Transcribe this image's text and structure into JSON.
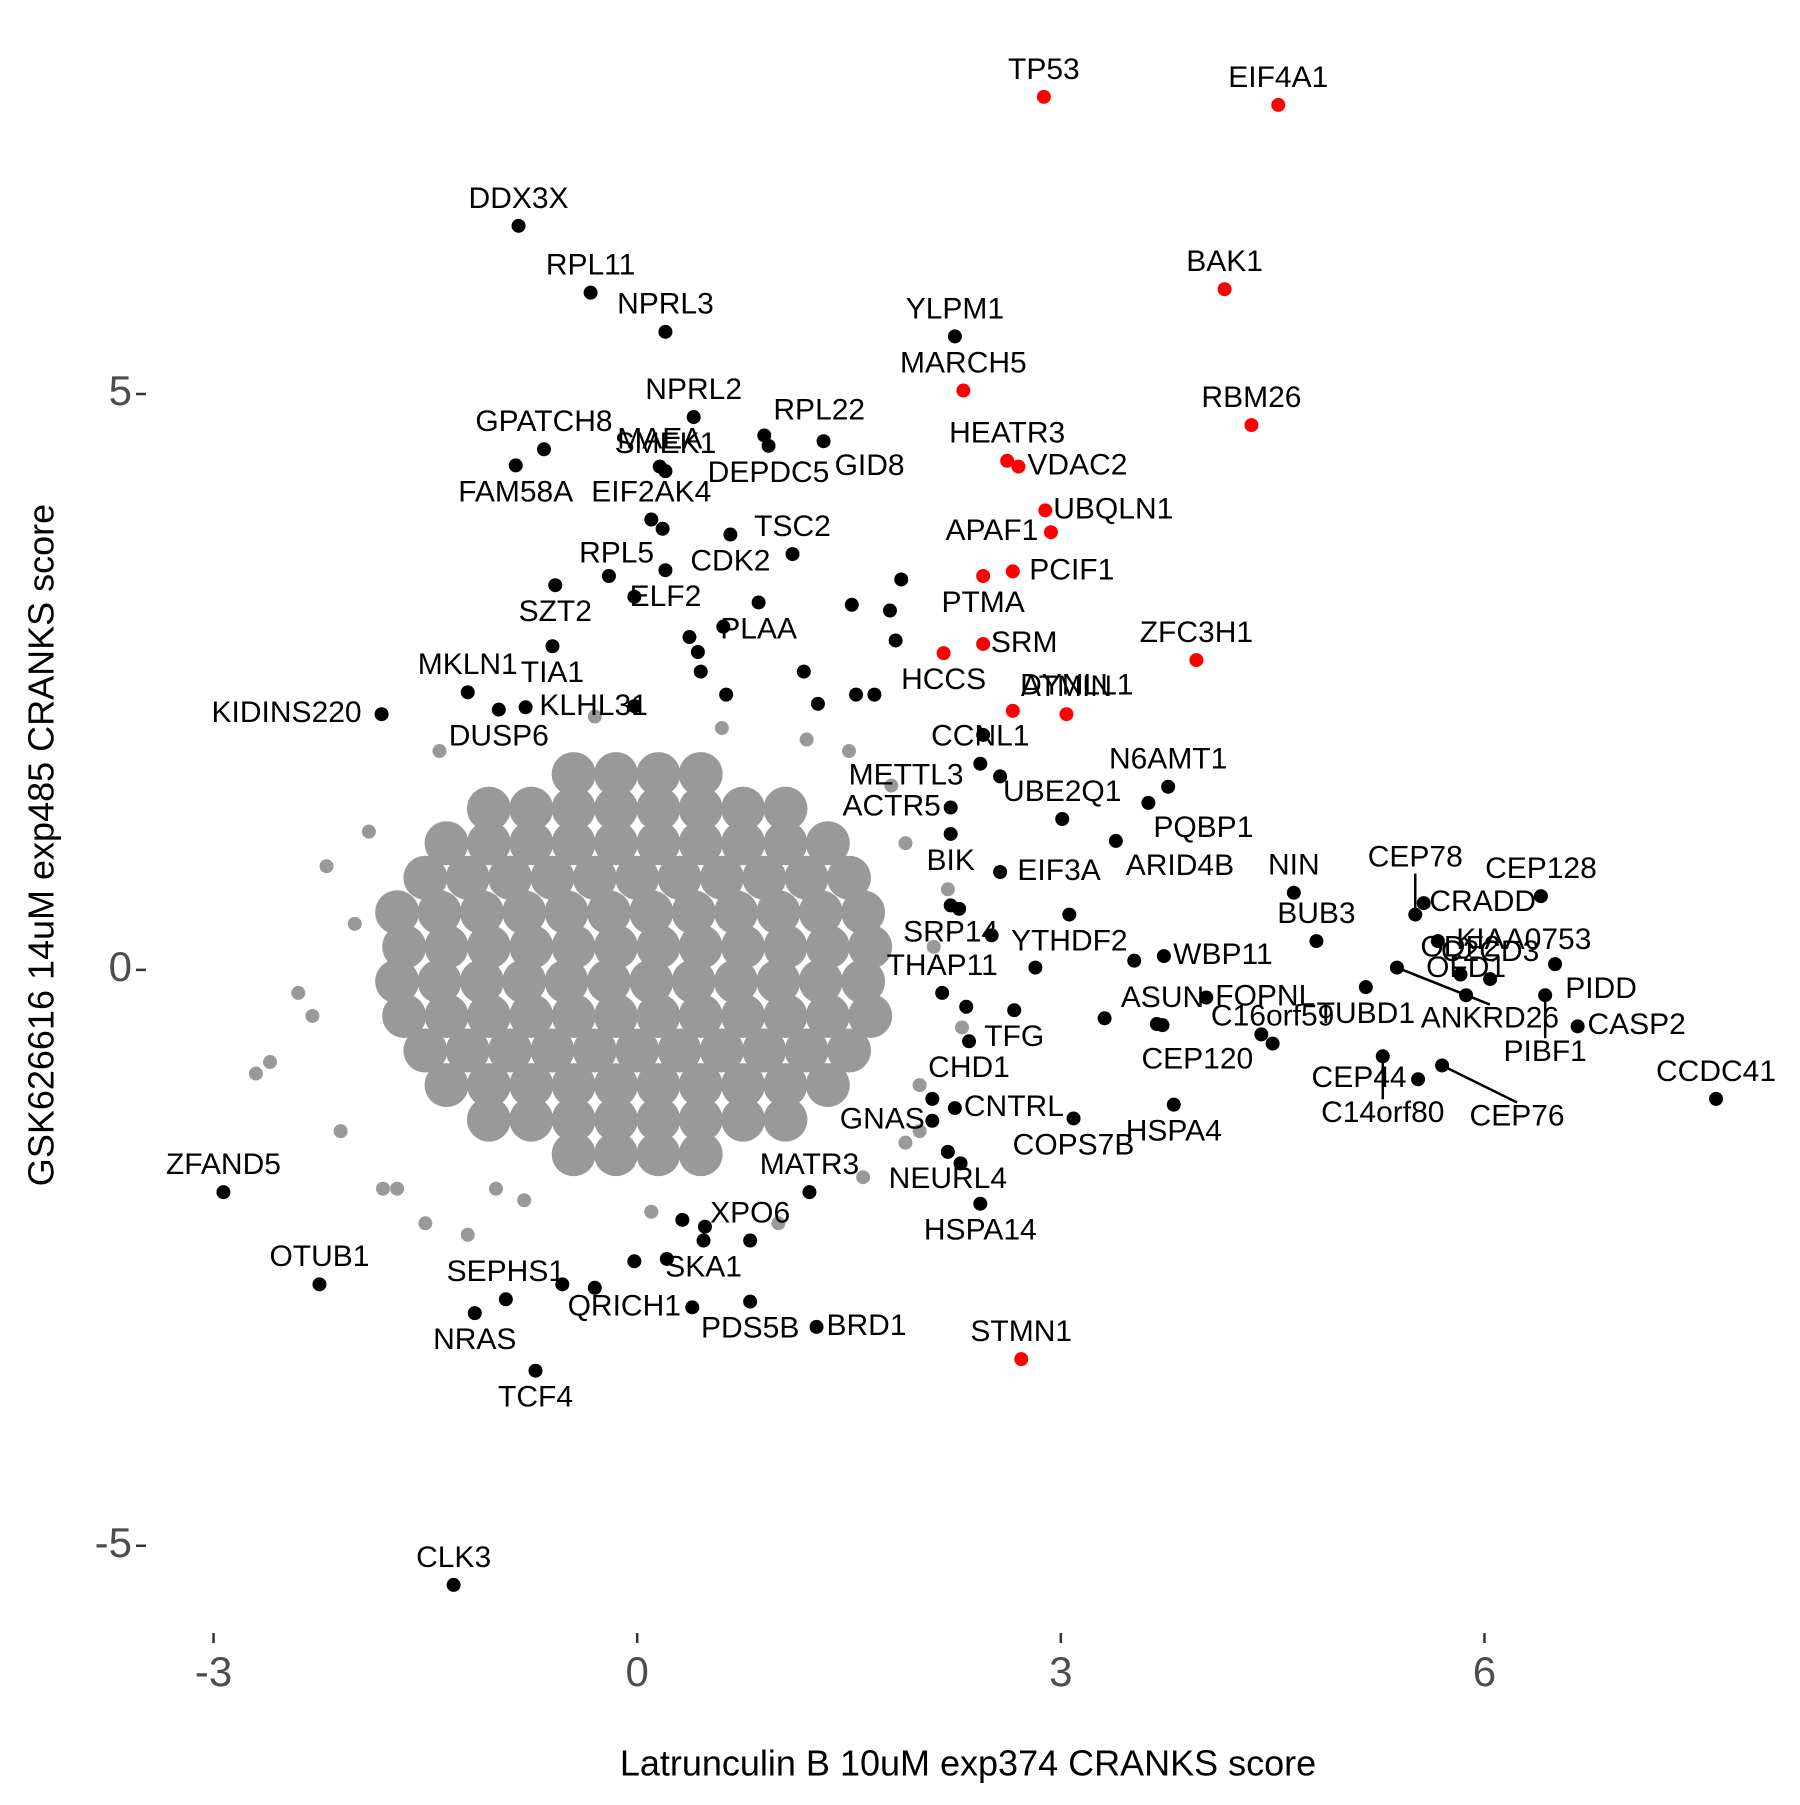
{
  "chart_data": {
    "type": "scatter",
    "x_label": "Latrunculin B 10uM exp374 CRANKS score",
    "y_label": "GSK626616 14uM exp485 CRANKS score",
    "xlim": [
      -3.45,
      8.1
    ],
    "ylim": [
      -5.74,
      7.9
    ],
    "xticks": [
      -3,
      0,
      3,
      6
    ],
    "yticks": [
      -5,
      0,
      5
    ],
    "grid": false,
    "series": [
      {
        "color": "#999999",
        "x": [
          -0.45,
          -0.15,
          0.15,
          0.45,
          -1.05,
          -0.75,
          -0.45,
          -0.15,
          0.15,
          0.45,
          0.75,
          1.05,
          -1.35,
          -1.05,
          -0.75,
          -0.45,
          -0.15,
          0.15,
          0.45,
          0.75,
          1.05,
          1.35,
          -1.5,
          -1.2,
          -0.9,
          -0.6,
          -0.3,
          0,
          0.3,
          0.6,
          0.9,
          1.2,
          1.5,
          -1.65,
          -1.35,
          -1.05,
          -0.75,
          -0.45,
          -0.15,
          0.15,
          0.45,
          0.75,
          1.05,
          1.35,
          1.65,
          -1.7,
          -1.4,
          -1.1,
          -0.8,
          -0.5,
          -0.2,
          0.1,
          0.4,
          0.7,
          1.0,
          1.3,
          1.6,
          -1.65,
          -1.35,
          -1.05,
          -0.75,
          -0.45,
          -0.15,
          0.15,
          0.45,
          0.75,
          1.05,
          1.35,
          1.65,
          -1.7,
          -1.4,
          -1.1,
          -0.8,
          -0.5,
          -0.2,
          0.1,
          0.4,
          0.7,
          1.0,
          1.3,
          1.6,
          -1.5,
          -1.2,
          -0.9,
          -0.6,
          -0.3,
          0,
          0.3,
          0.6,
          0.9,
          1.2,
          1.5,
          -1.35,
          -1.05,
          -0.75,
          -0.45,
          -0.15,
          0.15,
          0.45,
          0.75,
          1.05,
          1.35,
          -1.05,
          -0.75,
          -0.45,
          -0.15,
          0.15,
          0.45,
          0.75,
          1.05,
          -0.45,
          -0.15,
          0.15,
          0.45
        ],
        "y": [
          -1.6,
          -1.6,
          -1.6,
          -1.6,
          -1.3,
          -1.3,
          -1.3,
          -1.3,
          -1.3,
          -1.3,
          -1.3,
          -1.3,
          -1.0,
          -1.0,
          -1.0,
          -1.0,
          -1.0,
          -1.0,
          -1.0,
          -1.0,
          -1.0,
          -1.0,
          -0.7,
          -0.7,
          -0.7,
          -0.7,
          -0.7,
          -0.7,
          -0.7,
          -0.7,
          -0.7,
          -0.7,
          -0.7,
          -0.4,
          -0.4,
          -0.4,
          -0.4,
          -0.4,
          -0.4,
          -0.4,
          -0.4,
          -0.4,
          -0.4,
          -0.4,
          -0.4,
          -0.1,
          -0.1,
          -0.1,
          -0.1,
          -0.1,
          -0.1,
          -0.1,
          -0.1,
          -0.1,
          -0.1,
          -0.1,
          -0.1,
          0.2,
          0.2,
          0.2,
          0.2,
          0.2,
          0.2,
          0.2,
          0.2,
          0.2,
          0.2,
          0.2,
          0.2,
          0.5,
          0.5,
          0.5,
          0.5,
          0.5,
          0.5,
          0.5,
          0.5,
          0.5,
          0.5,
          0.5,
          0.5,
          0.8,
          0.8,
          0.8,
          0.8,
          0.8,
          0.8,
          0.8,
          0.8,
          0.8,
          0.8,
          0.8,
          1.1,
          1.1,
          1.1,
          1.1,
          1.1,
          1.1,
          1.1,
          1.1,
          1.1,
          1.1,
          1.4,
          1.4,
          1.4,
          1.4,
          1.4,
          1.4,
          1.4,
          1.4,
          1.7,
          1.7,
          1.7,
          1.7
        ]
      },
      {
        "color": "#999999",
        "x": [
          -2.3,
          -2.6,
          -2.7,
          -2.2,
          -1.9,
          -2.1,
          -1.8,
          -1.5,
          -1.2,
          -1.7,
          2.3,
          2.0,
          2.1,
          1.9,
          1.8,
          1.5,
          -1.4,
          -0.3,
          0.6,
          1.2,
          2.0,
          1.6,
          1.0,
          0.1,
          -0.8,
          -2.0,
          -2.4,
          2.2,
          -1.0,
          1.9
        ],
        "y": [
          -0.4,
          -0.8,
          -0.9,
          0.9,
          1.2,
          -1.4,
          -1.9,
          -2.2,
          -2.3,
          -1.9,
          -0.5,
          -1.0,
          0.2,
          1.1,
          1.6,
          1.9,
          1.9,
          2.2,
          2.1,
          2.0,
          -1.4,
          -1.8,
          -2.2,
          -2.1,
          -2.0,
          0.4,
          -0.2,
          0.7,
          -1.9,
          -1.5
        ]
      },
      {
        "color": "#000000",
        "x": [
          -0.2,
          -0.02,
          0.37,
          0.61,
          0.43,
          0.45,
          0.63,
          -0.02,
          1.52,
          1.79,
          1.83,
          1.55,
          1.68,
          1.28,
          1.18,
          1.87,
          2.45,
          2.28,
          2.51,
          2.82,
          3.52,
          3.31,
          3.68,
          2.33,
          2.09,
          2.29,
          -0.02,
          -0.3,
          -0.53,
          0.21,
          0.48,
          0.32
        ],
        "y": [
          3.42,
          3.24,
          2.89,
          2.98,
          2.76,
          2.59,
          2.39,
          2.29,
          3.17,
          3.12,
          2.86,
          2.39,
          2.39,
          2.31,
          2.59,
          3.39,
          2.04,
          0.53,
          0.3,
          0.02,
          0.08,
          -0.42,
          -0.47,
          -0.32,
          -1.12,
          -1.68,
          -2.53,
          -2.76,
          -2.73,
          -2.51,
          -2.23,
          -2.17
        ]
      },
      {
        "color": "#000000",
        "labels": [
          "DDX3X",
          "RPL11",
          "NPRL3",
          "NPRL2",
          "RPL22",
          "DEPDC5",
          "YLPM1",
          "EIF2AK4",
          "MAEA",
          "SMEK1",
          "GPATCH8",
          "FAM58A",
          "GID8",
          "RPL5",
          "CDK2",
          "TSC2",
          "SZT2",
          "ELF2",
          "PLAA",
          "TIA1",
          "MKLN1",
          "DUSP6",
          "KIDINS220",
          "KLHL31",
          "CCNL1",
          "UBE2Q1",
          "N6AMT1",
          "METTL3",
          "PQBP1",
          "ACTR5",
          "BIK",
          "EIF3A",
          "ARID4B",
          "YTHDF2",
          "SRP14",
          "NIN",
          "BUB3",
          "WBP11",
          "TUBD1",
          "FOPNL",
          "CEP120",
          "CEP78",
          "ANKRD26",
          "CRADD",
          "KIAA0753",
          "CEP128",
          "PIDD",
          "PIBF1",
          "ODF2",
          "C2CD3",
          "CASP2",
          "CCDC41",
          "OFD1",
          "C14orf80",
          "CEP76",
          "CEP44",
          "ASUN",
          "C16orf59",
          "HSPA4",
          "THAP11",
          "TFG",
          "CHD1",
          "GNAS",
          "CNTRL",
          "COPS7B",
          "NEURL4",
          "HSPA14",
          "MATR3",
          "XPO6",
          "SKA1",
          "SEPHS1",
          "PDS5B",
          "QRICH1",
          "BRD1",
          "NRAS",
          "TCF4",
          "ZFAND5",
          "OTUB1",
          "CLK3"
        ],
        "x": [
          -0.84,
          -0.33,
          0.2,
          0.4,
          0.9,
          0.93,
          2.25,
          0.1,
          0.16,
          0.2,
          -0.66,
          -0.86,
          1.32,
          0.18,
          0.66,
          1.1,
          -0.58,
          0.2,
          0.86,
          -0.6,
          -1.2,
          -0.98,
          -1.81,
          -0.79,
          2.43,
          3.01,
          3.76,
          2.57,
          3.62,
          2.22,
          2.22,
          2.57,
          3.39,
          3.06,
          2.22,
          4.65,
          4.81,
          3.73,
          5.16,
          4.03,
          4.42,
          5.51,
          5.38,
          5.57,
          5.67,
          6.4,
          6.5,
          6.43,
          5.83,
          6.04,
          6.66,
          7.64,
          5.87,
          5.28,
          5.7,
          5.53,
          3.72,
          4.5,
          3.8,
          2.16,
          2.67,
          2.35,
          2.09,
          2.25,
          3.09,
          2.2,
          2.43,
          1.22,
          0.8,
          0.47,
          -0.93,
          0.8,
          0.39,
          1.27,
          -1.15,
          -0.72,
          -2.93,
          -2.25,
          -1.3
        ],
        "y": [
          6.46,
          5.88,
          5.54,
          4.8,
          4.64,
          4.55,
          5.5,
          3.91,
          4.37,
          4.33,
          4.52,
          4.38,
          4.59,
          3.83,
          3.78,
          3.61,
          3.34,
          3.47,
          3.19,
          2.81,
          2.41,
          2.26,
          2.22,
          2.28,
          1.79,
          1.31,
          1.59,
          1.68,
          1.45,
          1.41,
          1.18,
          0.85,
          1.12,
          0.48,
          0.56,
          0.67,
          0.25,
          0.12,
          -0.15,
          -0.24,
          -0.56,
          0.48,
          0.02,
          0.58,
          0.25,
          0.64,
          0.05,
          -0.22,
          -0.04,
          -0.08,
          -0.49,
          -1.12,
          -0.22,
          -0.75,
          -0.83,
          -0.95,
          -0.48,
          -0.64,
          -1.17,
          -0.2,
          -0.35,
          -0.62,
          -1.31,
          -1.2,
          -1.29,
          -1.58,
          -2.03,
          -1.93,
          -2.35,
          -2.35,
          -2.86,
          -2.88,
          -2.93,
          -3.1,
          -2.98,
          -3.48,
          -1.93,
          -2.73,
          -5.34
        ]
      },
      {
        "color": "#ff0000",
        "labels": [
          "TP53",
          "EIF4A1",
          "BAK1",
          "RBM26",
          "MARCH5",
          "HEATR3",
          "VDAC2",
          "UBQLN1",
          "APAF1",
          "PTMA",
          "PCIF1",
          "HCCS",
          "SRM",
          "DYNLL1",
          "ATMIN",
          "ZFC3H1",
          "STMN1"
        ],
        "x": [
          2.88,
          4.54,
          4.16,
          4.35,
          2.31,
          2.62,
          2.7,
          2.89,
          2.93,
          2.45,
          2.66,
          2.17,
          2.45,
          2.66,
          3.04,
          3.96,
          2.72
        ],
        "y": [
          7.58,
          7.51,
          5.91,
          4.73,
          5.03,
          4.42,
          4.37,
          3.99,
          3.8,
          3.42,
          3.46,
          2.75,
          2.83,
          2.25,
          2.22,
          2.69,
          -3.38
        ]
      }
    ]
  }
}
